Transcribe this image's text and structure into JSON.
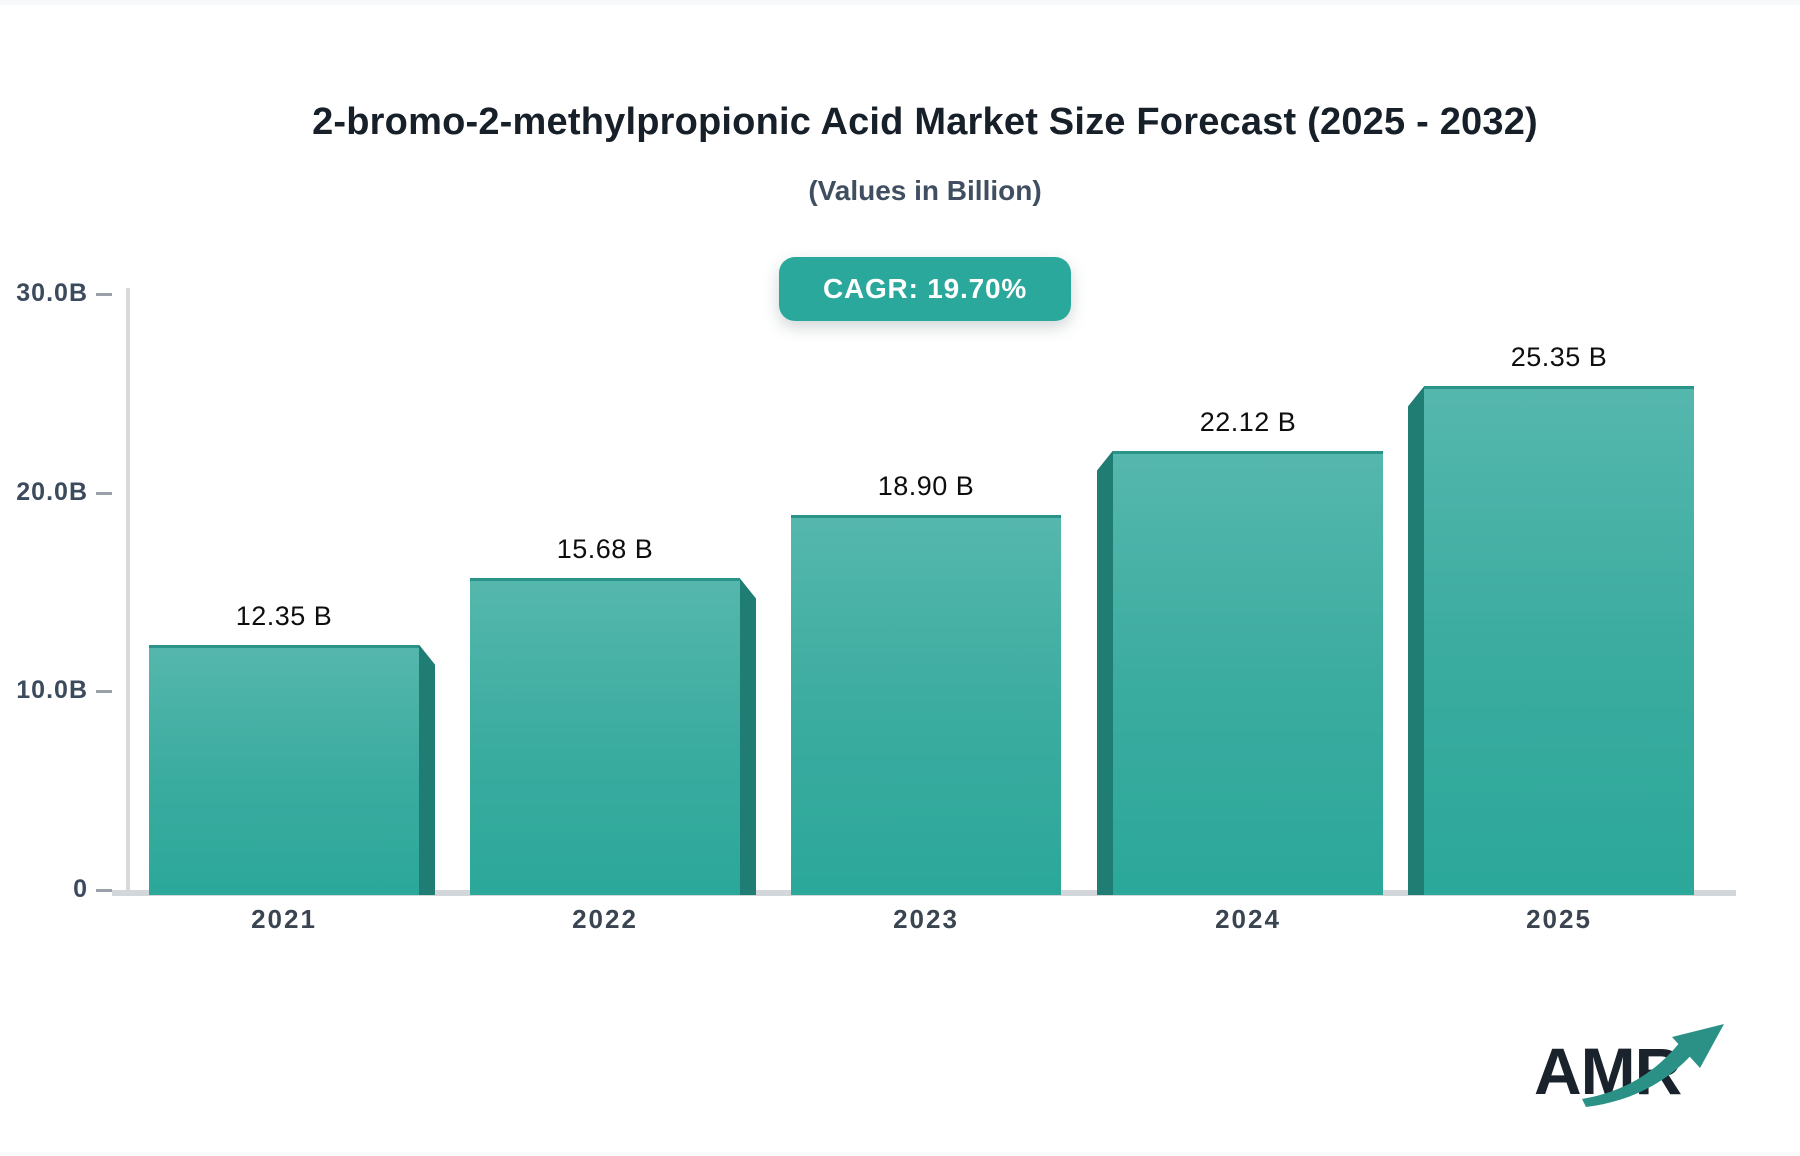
{
  "header": {
    "title": "2-bromo-2-methylpropionic Acid Market Size Forecast (2025 - 2032)",
    "subtitle": "(Values in Billion)",
    "cagr_label": "CAGR: 19.70%"
  },
  "chart_data": {
    "type": "bar",
    "title": "2-bromo-2-methylpropionic Acid Market Size Forecast (2025 - 2032)",
    "subtitle": "(Values in Billion)",
    "cagr": "19.70%",
    "categories": [
      "2021",
      "2022",
      "2023",
      "2024",
      "2025"
    ],
    "values": [
      12.35,
      15.68,
      18.9,
      22.12,
      25.35
    ],
    "value_labels": [
      "12.35 B",
      "15.68 B",
      "18.90 B",
      "22.12 B",
      "25.35 B"
    ],
    "unit": "Billion",
    "xlabel": "",
    "ylabel": "",
    "ylim": [
      0,
      30
    ],
    "y_ticks": [
      {
        "value": 30,
        "label": "30.0B"
      },
      {
        "value": 20,
        "label": "20.0B"
      },
      {
        "value": 10,
        "label": "10.0B"
      },
      {
        "value": 0,
        "label": "0"
      }
    ],
    "grid": false,
    "legend_position": "none",
    "colors": {
      "bar_face_top": "#55b7ad",
      "bar_face_bottom": "#2ba89a",
      "bar_side": "#1f7d73",
      "badge_background": "#2aa89b",
      "badge_text": "#ffffff",
      "axis_line": "#d4d7da",
      "value_label_text": "#0e0e0e",
      "axis_label_text": "#3a4551"
    }
  },
  "logo": {
    "text": "AMR",
    "text_color": "#1a232b",
    "arrow_color": "#2b9186",
    "arrow_icon": "up-right-trend-arrow"
  }
}
